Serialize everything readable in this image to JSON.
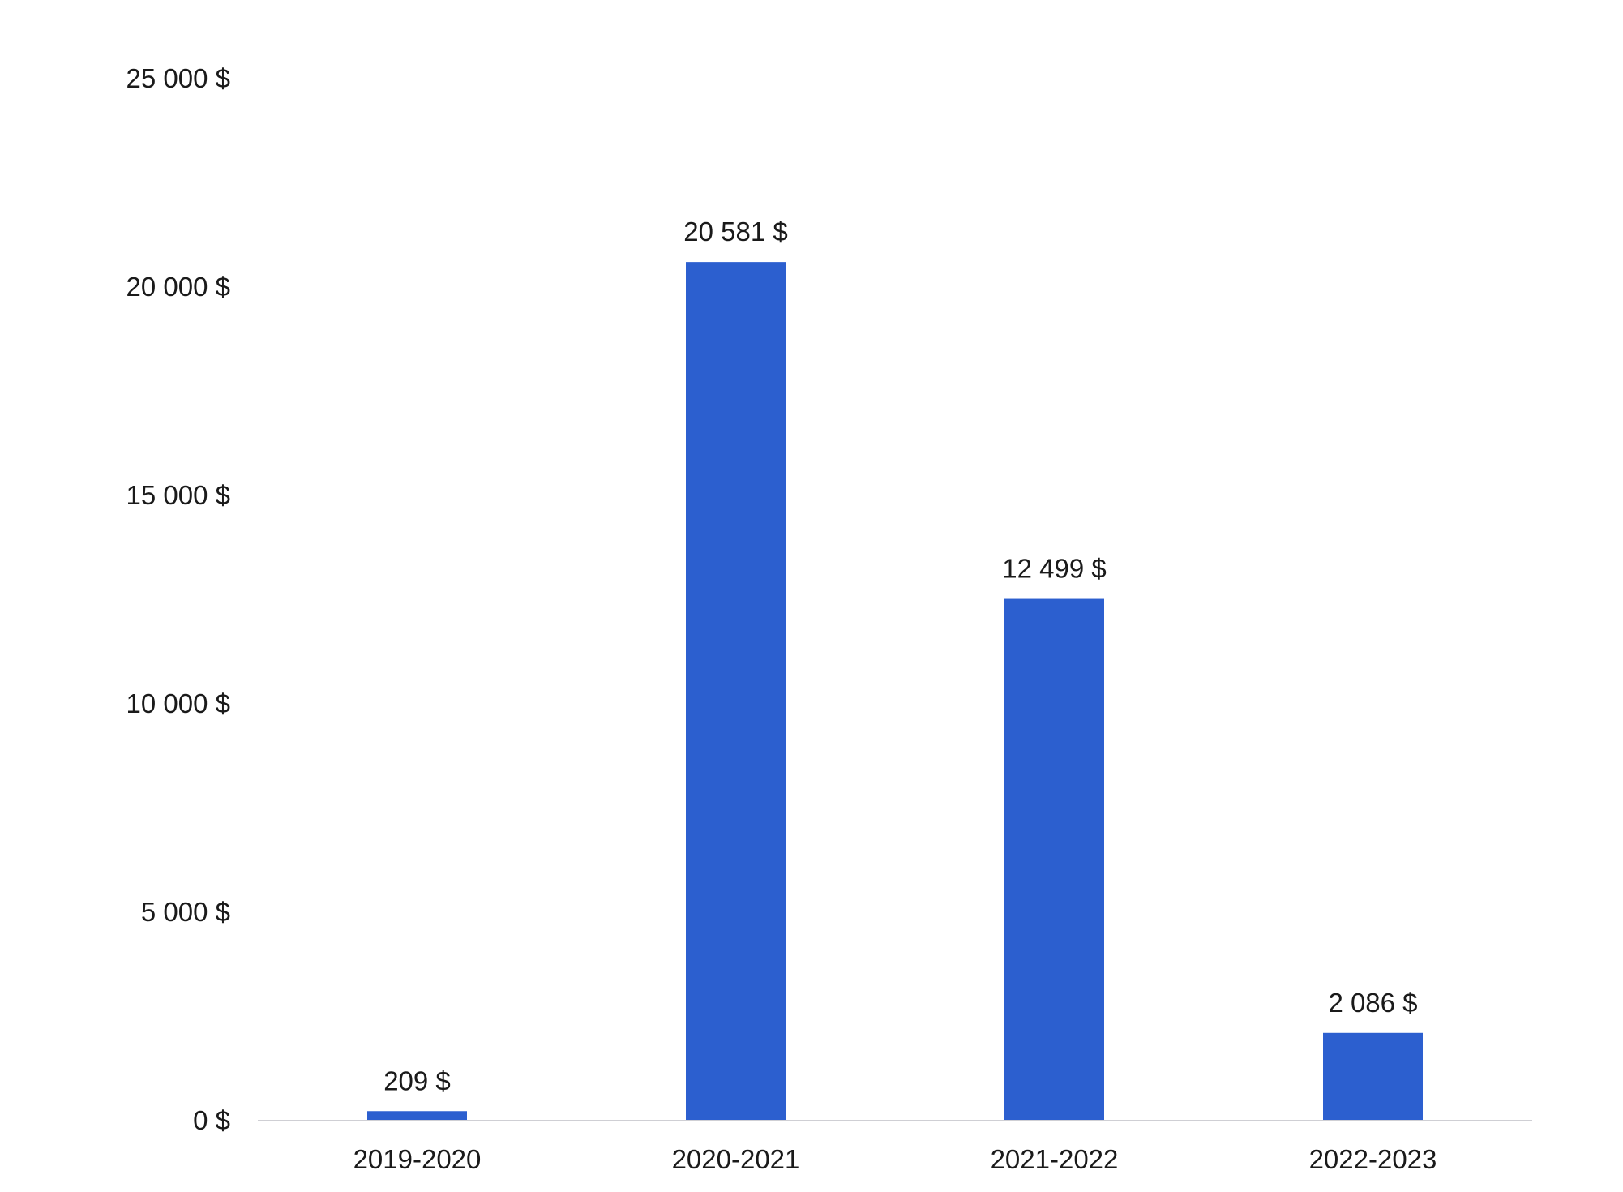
{
  "chart_data": {
    "type": "bar",
    "title": "",
    "xlabel": "",
    "ylabel": "",
    "categories": [
      "2019-2020",
      "2020-2021",
      "2021-2022",
      "2022-2023"
    ],
    "values": [
      209,
      20581,
      12499,
      2086
    ],
    "data_labels": [
      "209 $",
      "20 581 $",
      "12 499 $",
      "2 086 $"
    ],
    "ylim": [
      0,
      25000
    ],
    "y_ticks": [
      0,
      5000,
      10000,
      15000,
      20000,
      25000
    ],
    "y_tick_labels": [
      "0 $",
      "5 000 $",
      "10 000 $",
      "15 000 $",
      "20 000 $",
      "25 000 $"
    ],
    "grid": false,
    "legend": "none",
    "bar_color": "#2c5fcf",
    "axis_color": "#cfcfd4"
  }
}
